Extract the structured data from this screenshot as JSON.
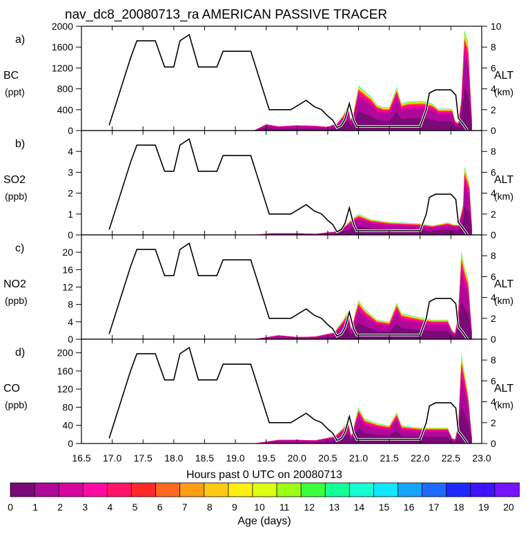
{
  "title": "nav_dc8_20080713_ra AMERICAN PASSIVE TRACER",
  "xlabel": "Hours past 0 UTC on 20080713",
  "xticks": [
    "16.5",
    "17.0",
    "17.5",
    "18.0",
    "18.5",
    "19.0",
    "19.5",
    "20.0",
    "20.5",
    "21.0",
    "21.5",
    "22.0",
    "22.5",
    "23.0"
  ],
  "right_axis": {
    "label": "ALT",
    "unit": "(km)",
    "ticks": [
      "0",
      "2",
      "4",
      "6",
      "8",
      "10"
    ]
  },
  "colorbar": {
    "label": "Age (days)",
    "ticks": [
      "0",
      "1",
      "2",
      "3",
      "4",
      "5",
      "6",
      "7",
      "8",
      "9",
      "10",
      "11",
      "12",
      "13",
      "14",
      "15",
      "16",
      "17",
      "18",
      "19",
      "20"
    ],
    "colors": [
      "#7a0a78",
      "#b0089a",
      "#d8049e",
      "#ff0aa0",
      "#ff1466",
      "#ff2a2a",
      "#ff6a1e",
      "#ff9e14",
      "#ffca14",
      "#ffee14",
      "#dcff14",
      "#9cff14",
      "#3cff3c",
      "#14ff96",
      "#14ffd2",
      "#14e6ff",
      "#14a6ff",
      "#1e6aff",
      "#1e2aff",
      "#3c14ff",
      "#7814ff"
    ]
  },
  "chart_data": {
    "type": "area",
    "x_range": [
      16.5,
      23.0
    ],
    "x_ticks": [
      16.5,
      17.0,
      17.5,
      18.0,
      18.5,
      19.0,
      19.5,
      20.0,
      20.5,
      21.0,
      21.5,
      22.0,
      22.5,
      23.0
    ],
    "altitude_km": {
      "x": [
        16.95,
        17.3,
        17.4,
        17.7,
        17.85,
        18.0,
        18.1,
        18.25,
        18.4,
        18.7,
        18.8,
        19.0,
        19.25,
        19.55,
        19.7,
        19.9,
        20.15,
        20.28,
        20.4,
        20.5,
        20.58,
        20.65,
        20.72,
        20.78,
        20.85,
        20.92,
        20.97,
        21.1,
        21.5,
        22.0,
        22.1,
        22.15,
        22.25,
        22.5,
        22.58,
        22.62,
        22.7,
        22.77
      ],
      "y": [
        0.5,
        7.0,
        8.6,
        8.6,
        6.1,
        6.1,
        8.6,
        9.2,
        6.1,
        6.1,
        7.6,
        7.6,
        7.6,
        2.0,
        2.0,
        2.0,
        2.9,
        2.3,
        2.0,
        1.4,
        1.0,
        0.3,
        0.5,
        1.1,
        2.6,
        1.0,
        0.4,
        0.4,
        0.4,
        0.4,
        2.0,
        3.6,
        3.9,
        3.9,
        3.4,
        1.2,
        0.6,
        0.0
      ]
    },
    "panels": [
      {
        "id": "a",
        "species": "BC",
        "unit": "(ppt)",
        "ylim": [
          0,
          2000
        ],
        "yticks": [
          0,
          400,
          800,
          1200,
          1600,
          2000
        ],
        "total": {
          "x": [
            19.3,
            19.5,
            19.7,
            20.0,
            20.3,
            20.5,
            20.65,
            20.75,
            20.83,
            20.87,
            20.92,
            20.95,
            21.0,
            21.1,
            21.2,
            21.3,
            21.4,
            21.5,
            21.62,
            21.7,
            21.8,
            22.0,
            22.1,
            22.2,
            22.3,
            22.45,
            22.52,
            22.57,
            22.62,
            22.67,
            22.72,
            22.78,
            22.85
          ],
          "y": [
            0,
            120,
            80,
            100,
            90,
            70,
            140,
            300,
            500,
            220,
            350,
            550,
            870,
            760,
            660,
            500,
            450,
            450,
            840,
            520,
            560,
            570,
            560,
            520,
            420,
            420,
            420,
            190,
            150,
            640,
            1950,
            1700,
            0
          ]
        }
      },
      {
        "id": "b",
        "species": "SO2",
        "unit": "(ppb)",
        "ylim": [
          0,
          5
        ],
        "yticks": [
          0,
          1,
          2,
          3,
          4
        ],
        "total": {
          "x": [
            19.3,
            19.6,
            20.0,
            20.3,
            20.6,
            20.8,
            20.9,
            21.0,
            21.2,
            21.5,
            22.0,
            22.2,
            22.45,
            22.55,
            22.62,
            22.7,
            22.72,
            22.8,
            22.85
          ],
          "y": [
            0,
            0.08,
            0.08,
            0.05,
            0.15,
            0.5,
            0.8,
            1.0,
            0.75,
            0.62,
            0.55,
            0.45,
            0.6,
            0.5,
            0.5,
            1.5,
            3.3,
            2.5,
            0
          ]
        }
      },
      {
        "id": "c",
        "species": "NO2",
        "unit": "(ppb)",
        "ylim": [
          0,
          24
        ],
        "yticks": [
          0,
          4,
          8,
          12,
          16,
          20
        ],
        "total": {
          "x": [
            19.3,
            19.7,
            20.0,
            20.3,
            20.6,
            20.75,
            20.83,
            20.88,
            20.92,
            20.95,
            21.0,
            21.1,
            21.3,
            21.5,
            21.62,
            21.7,
            22.0,
            22.2,
            22.45,
            22.52,
            22.57,
            22.62,
            22.67,
            22.72,
            22.78,
            22.85
          ],
          "y": [
            0,
            0.9,
            0.5,
            0.6,
            1.5,
            4.5,
            6.5,
            2.5,
            4.5,
            6.5,
            9.0,
            7.0,
            4.5,
            4.0,
            8.5,
            6.0,
            5.0,
            4.5,
            4.5,
            2.0,
            1.5,
            7.0,
            20.5,
            17.0,
            14.0,
            0
          ]
        }
      },
      {
        "id": "d",
        "species": "CO",
        "unit": "(ppb)",
        "ylim": [
          0,
          230
        ],
        "yticks": [
          0,
          40,
          80,
          120,
          160,
          200
        ],
        "total": {
          "x": [
            19.3,
            19.7,
            20.0,
            20.3,
            20.6,
            20.75,
            20.83,
            20.88,
            20.92,
            20.95,
            21.0,
            21.1,
            21.3,
            21.5,
            21.62,
            21.7,
            22.0,
            22.2,
            22.45,
            22.52,
            22.57,
            22.62,
            22.67,
            22.72,
            22.78,
            22.85
          ],
          "y": [
            0,
            8,
            8,
            7,
            15,
            35,
            50,
            18,
            35,
            55,
            80,
            55,
            45,
            40,
            70,
            40,
            35,
            35,
            35,
            12,
            10,
            45,
            200,
            160,
            110,
            0
          ]
        }
      }
    ]
  }
}
